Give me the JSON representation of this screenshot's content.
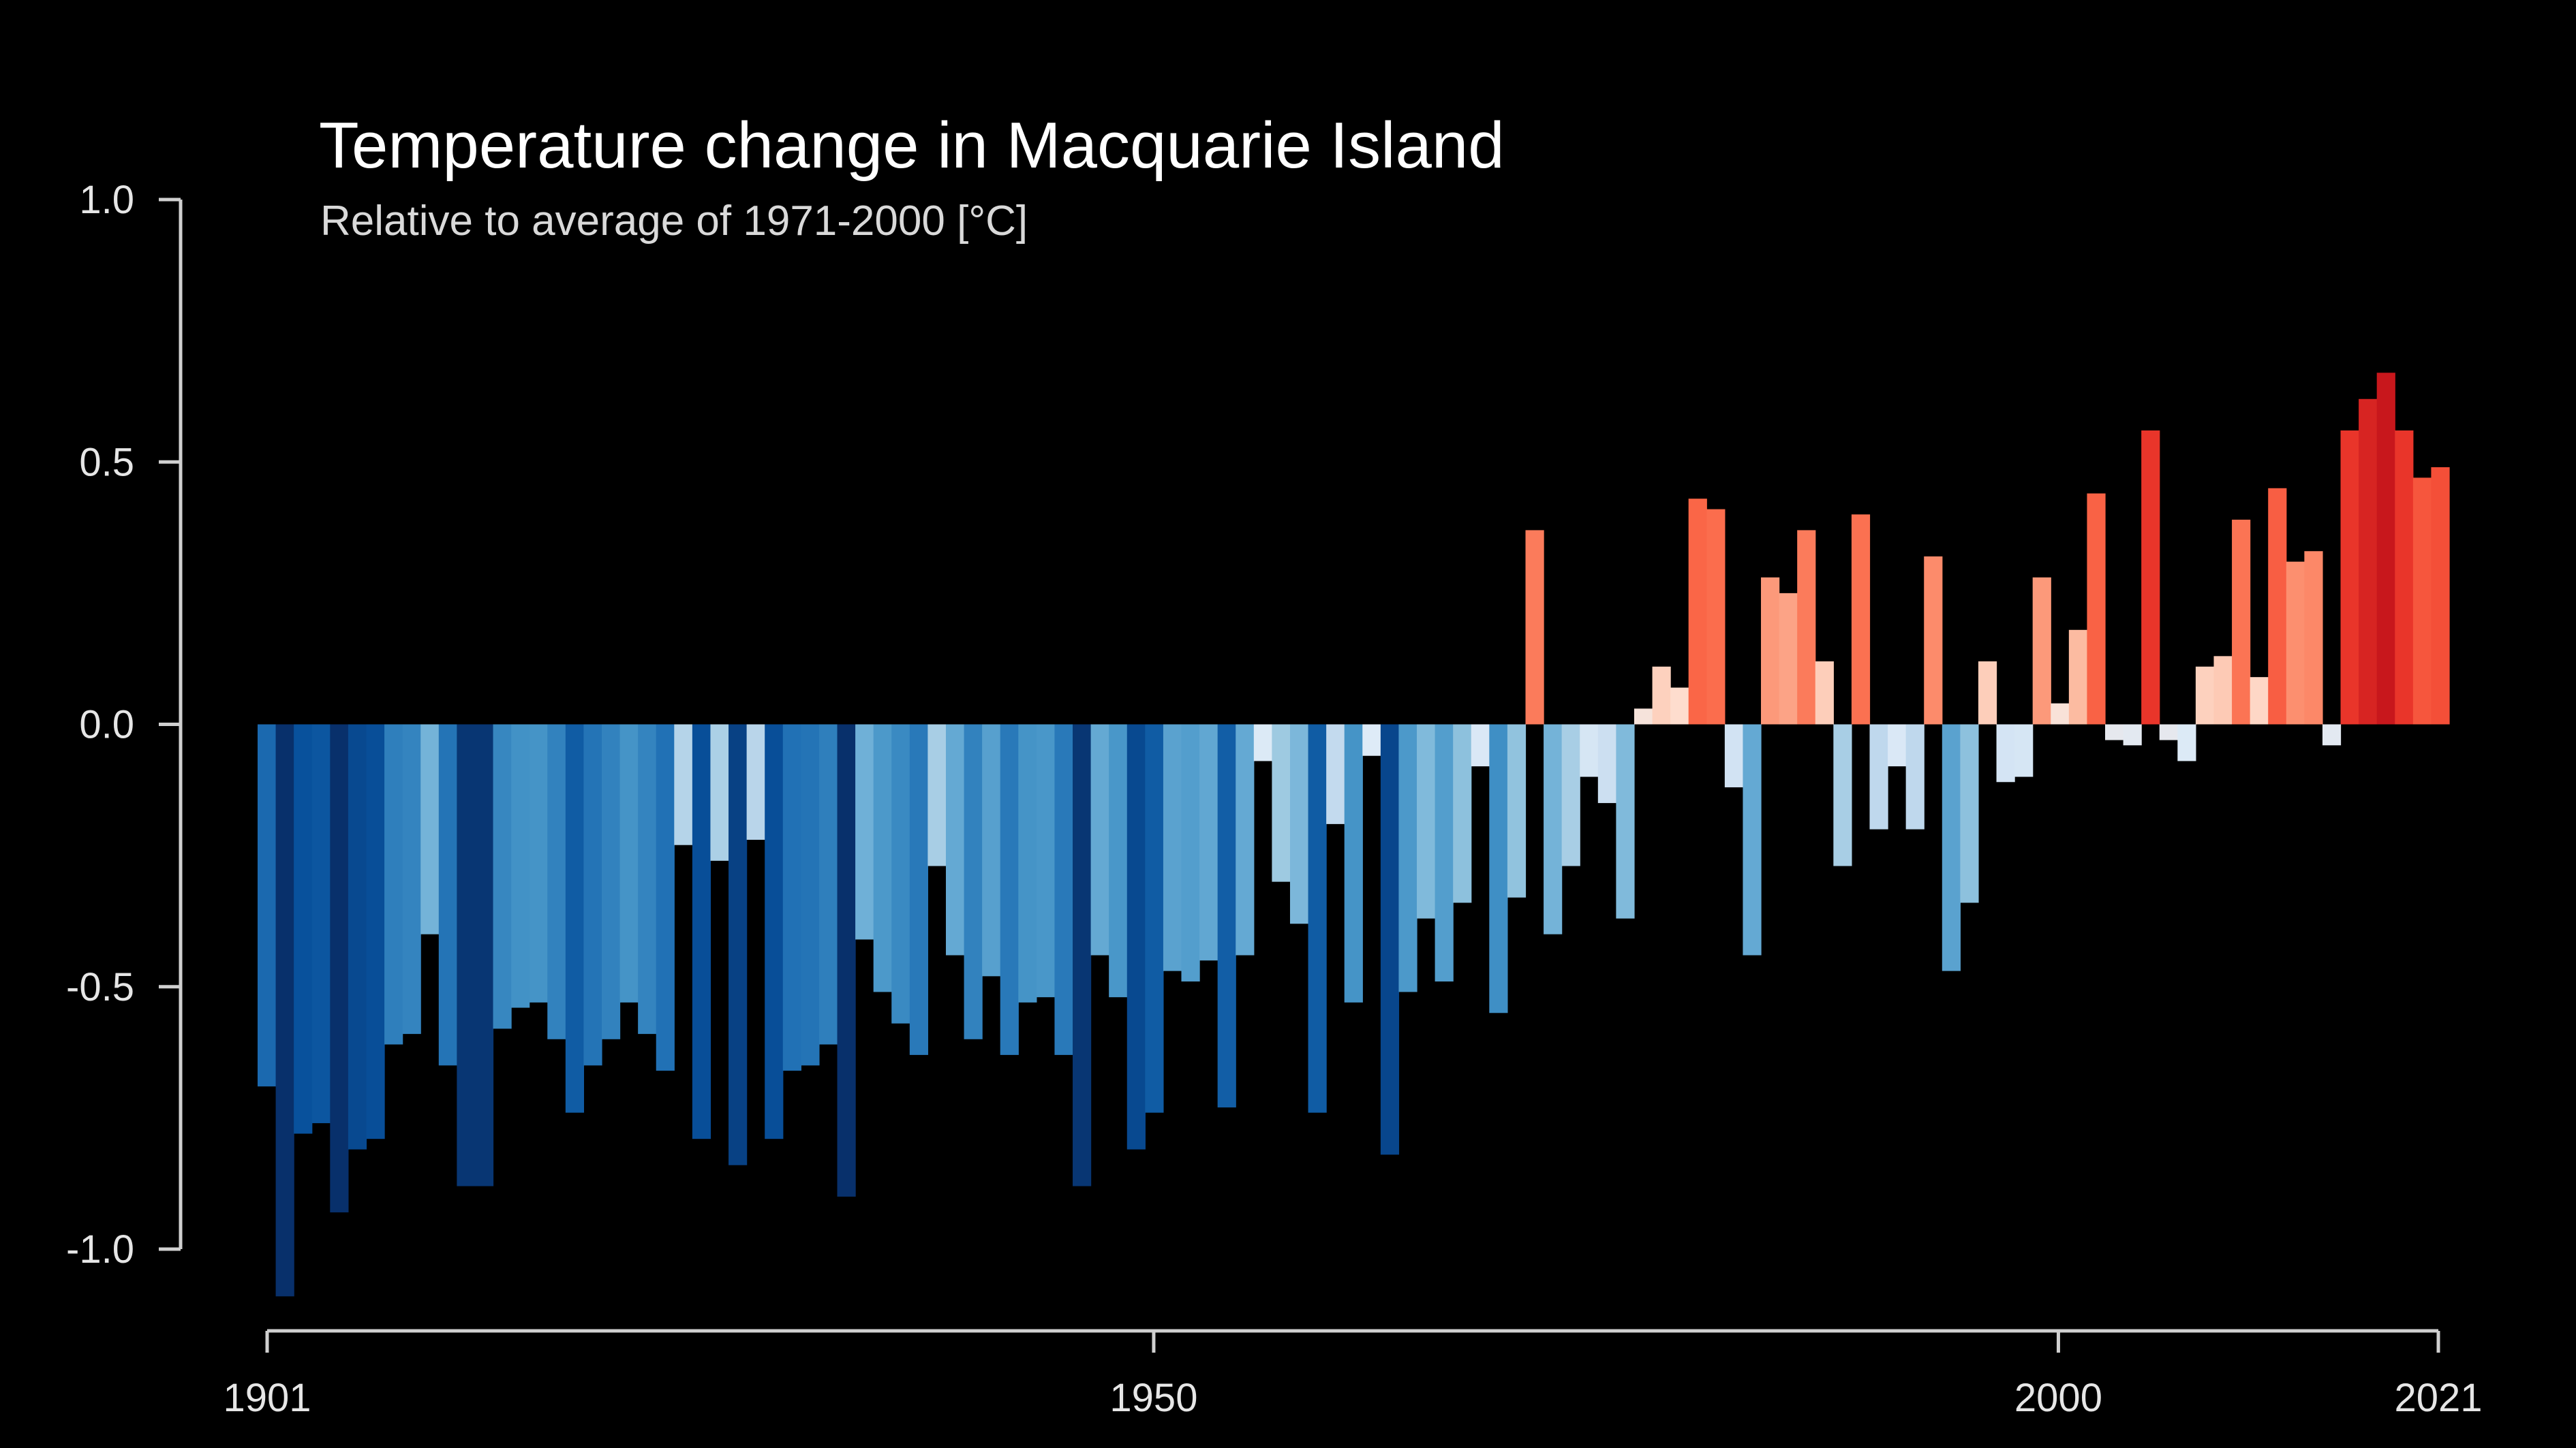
{
  "chart_data": {
    "type": "bar",
    "title": "Temperature change in Macquarie Island",
    "subtitle": "Relative to average of 1971-2000  [°C]",
    "xlabel": "",
    "ylabel": "",
    "x_start": 1901,
    "x_end": 2021,
    "xlim": [
      1901,
      2021
    ],
    "ylim": [
      -1.0,
      1.0
    ],
    "x_ticks": [
      {
        "value": 1901,
        "label": "1901"
      },
      {
        "value": 1950,
        "label": "1950"
      },
      {
        "value": 2000,
        "label": "2000"
      },
      {
        "value": 2021,
        "label": "2021"
      }
    ],
    "y_ticks": [
      {
        "value": 1.0,
        "label": "1.0"
      },
      {
        "value": 0.5,
        "label": "0.5"
      },
      {
        "value": 0.0,
        "label": "0.0"
      },
      {
        "value": -0.5,
        "label": "-0.5"
      },
      {
        "value": -1.0,
        "label": "-1.0"
      }
    ],
    "grid": false,
    "legend": "none",
    "color_scale": {
      "vmin": -0.9,
      "vmax": 0.9,
      "colors": [
        "#08306b",
        "#08519c",
        "#2171b5",
        "#4292c6",
        "#6baed6",
        "#9ecae1",
        "#c6dbef",
        "#deebf7",
        "#fee0d2",
        "#fcbba1",
        "#fc9272",
        "#fb6a4a",
        "#ef3b2c",
        "#cb181d",
        "#a50f15",
        "#67000d"
      ]
    },
    "years": [
      1901,
      1902,
      1903,
      1904,
      1905,
      1906,
      1907,
      1908,
      1909,
      1910,
      1911,
      1912,
      1913,
      1914,
      1915,
      1916,
      1917,
      1918,
      1919,
      1920,
      1921,
      1922,
      1923,
      1924,
      1925,
      1926,
      1927,
      1928,
      1929,
      1930,
      1931,
      1932,
      1933,
      1934,
      1935,
      1936,
      1937,
      1938,
      1939,
      1940,
      1941,
      1942,
      1943,
      1944,
      1945,
      1946,
      1947,
      1948,
      1949,
      1950,
      1951,
      1952,
      1953,
      1954,
      1955,
      1956,
      1957,
      1958,
      1959,
      1960,
      1961,
      1962,
      1963,
      1964,
      1965,
      1966,
      1967,
      1968,
      1969,
      1970,
      1971,
      1972,
      1973,
      1974,
      1975,
      1976,
      1977,
      1978,
      1979,
      1980,
      1981,
      1982,
      1983,
      1984,
      1985,
      1986,
      1987,
      1988,
      1989,
      1990,
      1991,
      1992,
      1993,
      1994,
      1995,
      1996,
      1997,
      1998,
      1999,
      2000,
      2001,
      2002,
      2003,
      2004,
      2005,
      2006,
      2007,
      2008,
      2009,
      2010,
      2011,
      2012,
      2013,
      2014,
      2015,
      2016,
      2017,
      2018,
      2019,
      2020,
      2021
    ],
    "values": [
      -0.69,
      -1.09,
      -0.78,
      -0.76,
      -0.93,
      -0.81,
      -0.79,
      -0.61,
      -0.59,
      -0.4,
      -0.65,
      -0.88,
      -0.88,
      -0.58,
      -0.54,
      -0.53,
      -0.6,
      -0.74,
      -0.65,
      -0.6,
      -0.53,
      -0.59,
      -0.66,
      -0.23,
      -0.79,
      -0.26,
      -0.84,
      -0.22,
      -0.79,
      -0.66,
      -0.65,
      -0.61,
      -0.9,
      -0.41,
      -0.51,
      -0.57,
      -0.63,
      -0.27,
      -0.44,
      -0.6,
      -0.48,
      -0.63,
      -0.53,
      -0.52,
      -0.63,
      -0.88,
      -0.44,
      -0.52,
      -0.81,
      -0.74,
      -0.47,
      -0.49,
      -0.45,
      -0.73,
      -0.44,
      -0.07,
      -0.3,
      -0.38,
      -0.74,
      -0.19,
      -0.53,
      -0.06,
      -0.82,
      -0.51,
      -0.37,
      -0.49,
      -0.34,
      -0.08,
      -0.55,
      -0.33,
      0.37,
      -0.4,
      -0.27,
      -0.1,
      -0.15,
      -0.37,
      0.03,
      0.11,
      0.07,
      0.43,
      0.41,
      -0.12,
      -0.44,
      0.28,
      0.25,
      0.37,
      0.12,
      -0.27,
      0.4,
      -0.2,
      -0.08,
      -0.2,
      0.32,
      -0.47,
      -0.34,
      0.12,
      -0.11,
      -0.1,
      0.28,
      0.04,
      0.18,
      0.44,
      -0.03,
      -0.04,
      0.56,
      -0.03,
      -0.07,
      0.11,
      0.13,
      0.39,
      0.09,
      0.45,
      0.31,
      0.33,
      -0.04,
      0.56,
      0.62,
      0.67,
      0.56,
      0.47,
      0.49
    ]
  }
}
